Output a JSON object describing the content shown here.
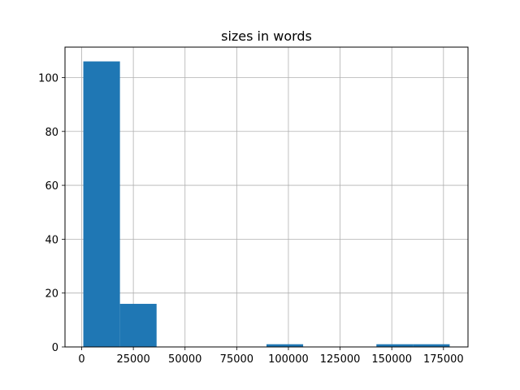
{
  "chart_data": {
    "type": "bar",
    "subtype": "histogram",
    "title": "sizes in words",
    "xlabel": "",
    "ylabel": "",
    "bin_edges": [
      800,
      18520,
      36240,
      53960,
      71680,
      89400,
      107120,
      124840,
      142560,
      160280,
      178000
    ],
    "values": [
      106,
      16,
      0,
      0,
      0,
      1,
      0,
      0,
      1,
      1
    ],
    "xlim": [
      -8060,
      186860
    ],
    "ylim": [
      0,
      111.3
    ],
    "xticks": [
      0,
      25000,
      50000,
      75000,
      100000,
      125000,
      150000,
      175000
    ],
    "xtick_labels": [
      "0",
      "25000",
      "50000",
      "75000",
      "100000",
      "125000",
      "150000",
      "175000"
    ],
    "yticks": [
      0,
      20,
      40,
      60,
      80,
      100
    ],
    "ytick_labels": [
      "0",
      "20",
      "40",
      "60",
      "80",
      "100"
    ],
    "grid": true,
    "bar_color": "#1f77b4",
    "grid_color": "#b0b0b0"
  }
}
